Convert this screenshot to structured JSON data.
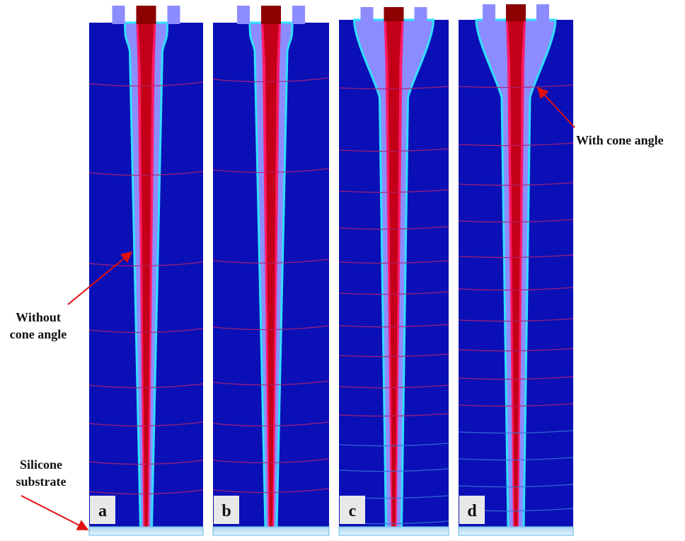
{
  "panels": [
    {
      "label": "a",
      "flow_profile": "without-cone-angle"
    },
    {
      "label": "b",
      "flow_profile": "without-cone-angle"
    },
    {
      "label": "c",
      "flow_profile": "with-cone-angle"
    },
    {
      "label": "d",
      "flow_profile": "with-cone-angle"
    }
  ],
  "annotations": {
    "without_cone": [
      "Without",
      "cone angle"
    ],
    "with_cone": "With cone angle",
    "substrate": [
      "Silicone",
      "substrate"
    ]
  },
  "colors": {
    "domain": "#0a10b6",
    "sheath_fluid": "#8c8cff",
    "interface": "#30e0ff",
    "core_jet": "#c40018",
    "core_jet_center": "#8c0000",
    "substrate": "#c8e6f5",
    "arrow": "#e01010",
    "streamline": "#b0206e"
  }
}
